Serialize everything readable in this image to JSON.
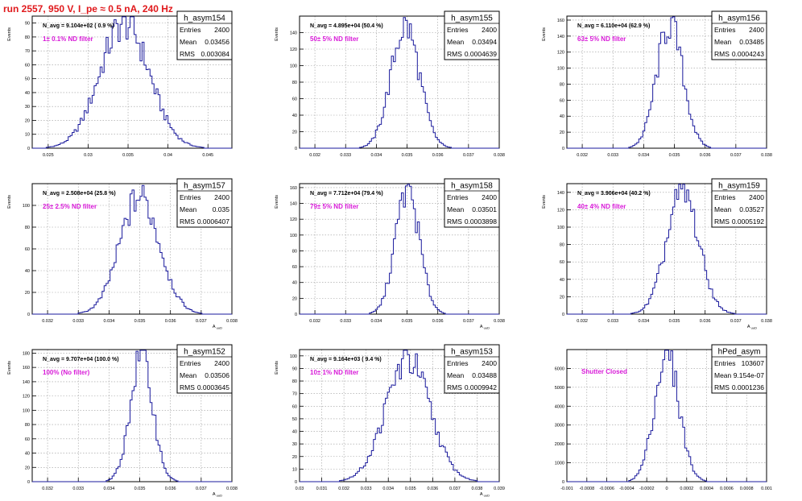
{
  "page": {
    "title": "run 2557,   950 V, I_pe ≈ 0.5 nA, 240 Hz",
    "colors": {
      "histogram": "#1a1a9c",
      "annotation": "#d81ad8",
      "title": "#e0191c",
      "grid": "#9a9a9a"
    }
  },
  "chart_data": [
    {
      "type": "histogram",
      "name": "h_asym154",
      "stats": [
        [
          "Entries",
          "2400"
        ],
        [
          "Mean",
          "0.03456"
        ],
        [
          "RMS",
          "0.003084"
        ]
      ],
      "navg": "N_avg = 9.104e+02 ( 0.9 %)",
      "annotation": "1± 0.1% ND filter",
      "ylabel": "Events",
      "xlabel": "",
      "xlim": [
        0.023,
        0.048
      ],
      "ylim": [
        0,
        95
      ],
      "xticks": [
        0.025,
        0.03,
        0.035,
        0.04,
        0.045
      ],
      "xtick_labels": [
        "0.025",
        "0.03",
        "0.035",
        "0.04",
        "0.045"
      ],
      "yticks": [
        0,
        10,
        20,
        30,
        40,
        50,
        60,
        70,
        80,
        90
      ],
      "ytick_labels": [
        "0",
        "10",
        "20",
        "30",
        "40",
        "50",
        "60",
        "70",
        "80",
        "90"
      ],
      "gauss": {
        "mean": 0.03456,
        "rms": 0.003084,
        "peak": 90
      }
    },
    {
      "type": "histogram",
      "name": "h_asym155",
      "stats": [
        [
          "Entries",
          "2400"
        ],
        [
          "Mean",
          "0.03494"
        ],
        [
          "RMS",
          "0.0004639"
        ]
      ],
      "navg": "N_avg = 4.895e+04 (50.4 %)",
      "annotation": "50± 5% ND filter",
      "ylabel": "Events",
      "xlabel": "",
      "xlim": [
        0.0315,
        0.038
      ],
      "ylim": [
        0,
        160
      ],
      "xticks": [
        0.032,
        0.033,
        0.034,
        0.035,
        0.036,
        0.037,
        0.038
      ],
      "xtick_labels": [
        "0.032",
        "0.033",
        "0.034",
        "0.035",
        "0.036",
        "0.037",
        "0.038"
      ],
      "yticks": [
        0,
        20,
        40,
        60,
        80,
        100,
        120,
        140
      ],
      "ytick_labels": [
        "0",
        "20",
        "40",
        "60",
        "80",
        "100",
        "120",
        "140"
      ],
      "gauss": {
        "mean": 0.03494,
        "rms": 0.0004639,
        "peak": 148
      }
    },
    {
      "type": "histogram",
      "name": "h_asym156",
      "stats": [
        [
          "Entries",
          "2400"
        ],
        [
          "Mean",
          "0.03485"
        ],
        [
          "RMS",
          "0.0004243"
        ]
      ],
      "navg": "N_avg = 6.110e+04 (62.9 %)",
      "annotation": "63± 5% ND filter",
      "ylabel": "Events",
      "xlabel": "",
      "xlim": [
        0.0315,
        0.038
      ],
      "ylim": [
        0,
        165
      ],
      "xticks": [
        0.032,
        0.033,
        0.034,
        0.035,
        0.036,
        0.037,
        0.038
      ],
      "xtick_labels": [
        "0.032",
        "0.033",
        "0.034",
        "0.035",
        "0.036",
        "0.037",
        "0.038"
      ],
      "yticks": [
        0,
        20,
        40,
        60,
        80,
        100,
        120,
        140,
        160
      ],
      "ytick_labels": [
        "0",
        "20",
        "40",
        "60",
        "80",
        "100",
        "120",
        "140",
        "160"
      ],
      "gauss": {
        "mean": 0.03485,
        "rms": 0.0004243,
        "peak": 155
      }
    },
    {
      "type": "histogram",
      "name": "h_asym157",
      "stats": [
        [
          "Entries",
          "2400"
        ],
        [
          "Mean",
          "0.035"
        ],
        [
          "RMS",
          "0.0006407"
        ]
      ],
      "navg": "N_avg = 2.508e+04 (25.8 %)",
      "annotation": "25± 2.5% ND filter",
      "ylabel": "Events",
      "xlabel": "A_uuD",
      "xlim": [
        0.0315,
        0.038
      ],
      "ylim": [
        0,
        120
      ],
      "xticks": [
        0.032,
        0.033,
        0.034,
        0.035,
        0.036,
        0.037,
        0.038
      ],
      "xtick_labels": [
        "0.032",
        "0.033",
        "0.034",
        "0.035",
        "0.036",
        "0.037",
        "0.038"
      ],
      "yticks": [
        0,
        20,
        40,
        60,
        80,
        100
      ],
      "ytick_labels": [
        "0",
        "20",
        "40",
        "60",
        "80",
        "100"
      ],
      "gauss": {
        "mean": 0.035,
        "rms": 0.0006407,
        "peak": 108
      }
    },
    {
      "type": "histogram",
      "name": "h_asym158",
      "stats": [
        [
          "Entries",
          "2400"
        ],
        [
          "Mean",
          "0.03501"
        ],
        [
          "RMS",
          "0.0003898"
        ]
      ],
      "navg": "N_avg = 7.712e+04 (79.4 %)",
      "annotation": "79± 5% ND filter",
      "ylabel": "Events",
      "xlabel": "A_uuD",
      "xlim": [
        0.0315,
        0.038
      ],
      "ylim": [
        0,
        165
      ],
      "xticks": [
        0.032,
        0.033,
        0.034,
        0.035,
        0.036,
        0.037,
        0.038
      ],
      "xtick_labels": [
        "0.032",
        "0.033",
        "0.034",
        "0.035",
        "0.036",
        "0.037",
        "0.038"
      ],
      "yticks": [
        0,
        20,
        40,
        60,
        80,
        100,
        120,
        140,
        160
      ],
      "ytick_labels": [
        "0",
        "20",
        "40",
        "60",
        "80",
        "100",
        "120",
        "140",
        "160"
      ],
      "gauss": {
        "mean": 0.03501,
        "rms": 0.0003898,
        "peak": 158
      }
    },
    {
      "type": "histogram",
      "name": "h_asym159",
      "stats": [
        [
          "Entries",
          "2400"
        ],
        [
          "Mean",
          "0.03527"
        ],
        [
          "RMS",
          "0.0005192"
        ]
      ],
      "navg": "N_avg = 3.906e+04 (40.2 %)",
      "annotation": "40± 4% ND filter",
      "ylabel": "Events",
      "xlabel": "A_uuD",
      "xlim": [
        0.0315,
        0.038
      ],
      "ylim": [
        0,
        150
      ],
      "xticks": [
        0.032,
        0.033,
        0.034,
        0.035,
        0.036,
        0.037,
        0.038
      ],
      "xtick_labels": [
        "0.032",
        "0.033",
        "0.034",
        "0.035",
        "0.036",
        "0.037",
        "0.038"
      ],
      "yticks": [
        0,
        20,
        40,
        60,
        80,
        100,
        120,
        140
      ],
      "ytick_labels": [
        "0",
        "20",
        "40",
        "60",
        "80",
        "100",
        "120",
        "140"
      ],
      "gauss": {
        "mean": 0.03527,
        "rms": 0.0005192,
        "peak": 140
      }
    },
    {
      "type": "histogram",
      "name": "h_asym152",
      "stats": [
        [
          "Entries",
          "2400"
        ],
        [
          "Mean",
          "0.03506"
        ],
        [
          "RMS",
          "0.0003645"
        ]
      ],
      "navg": "N_avg = 9.707e+04 (100.0 %)",
      "annotation": "100% (No filter)",
      "ylabel": "Events",
      "xlabel": "A_uuD",
      "xlim": [
        0.0315,
        0.038
      ],
      "ylim": [
        0,
        185
      ],
      "xticks": [
        0.032,
        0.033,
        0.034,
        0.035,
        0.036,
        0.037,
        0.038
      ],
      "xtick_labels": [
        "0.032",
        "0.033",
        "0.034",
        "0.035",
        "0.036",
        "0.037",
        "0.038"
      ],
      "yticks": [
        0,
        20,
        40,
        60,
        80,
        100,
        120,
        140,
        160,
        180
      ],
      "ytick_labels": [
        "0",
        "20",
        "40",
        "60",
        "80",
        "100",
        "120",
        "140",
        "160",
        "180"
      ],
      "gauss": {
        "mean": 0.03506,
        "rms": 0.0003645,
        "peak": 176
      }
    },
    {
      "type": "histogram",
      "name": "h_asym153",
      "stats": [
        [
          "Entries",
          "2400"
        ],
        [
          "Mean",
          "0.03488"
        ],
        [
          "RMS",
          "0.0009942"
        ]
      ],
      "navg": "N_avg = 9.164e+03 ( 9.4 %)",
      "annotation": "10± 1% ND filter",
      "ylabel": "Events",
      "xlabel": "A_uuD",
      "xlim": [
        0.03,
        0.039
      ],
      "ylim": [
        0,
        105
      ],
      "xticks": [
        0.03,
        0.031,
        0.032,
        0.033,
        0.034,
        0.035,
        0.036,
        0.037,
        0.038,
        0.039
      ],
      "xtick_labels": [
        "0.03",
        "0.031",
        "0.032",
        "0.033",
        "0.034",
        "0.035",
        "0.036",
        "0.037",
        "0.038",
        "0.039"
      ],
      "yticks": [
        0,
        10,
        20,
        30,
        40,
        50,
        60,
        70,
        80,
        90,
        100
      ],
      "ytick_labels": [
        "0",
        "10",
        "20",
        "30",
        "40",
        "50",
        "60",
        "70",
        "80",
        "90",
        "100"
      ],
      "gauss": {
        "mean": 0.03488,
        "rms": 0.0009942,
        "peak": 97
      }
    },
    {
      "type": "histogram",
      "name": "hPed_asym",
      "stats": [
        [
          "Entries",
          "103607"
        ],
        [
          "Mean",
          "9.154e-07"
        ],
        [
          "RMS",
          "0.0001236"
        ]
      ],
      "navg": "",
      "annotation": "Shutter Closed",
      "ylabel": "",
      "xlabel": "",
      "xlim": [
        -0.001,
        0.001
      ],
      "ylim": [
        0,
        7000
      ],
      "xticks": [
        -0.001,
        -0.0008,
        -0.0006,
        -0.0004,
        -0.0002,
        0,
        0.0002,
        0.0004,
        0.0006,
        0.0008,
        0.001
      ],
      "xtick_labels": [
        "-0.001",
        "-0.0008",
        "-0.0006",
        "-0.0004",
        "-0.0002",
        "0",
        "0.0002",
        "0.0004",
        "0.0006",
        "0.0008",
        "0.001"
      ],
      "yticks": [
        0,
        1000,
        2000,
        3000,
        4000,
        5000,
        6000
      ],
      "ytick_labels": [
        "0",
        "1000",
        "2000",
        "3000",
        "4000",
        "5000",
        "6000"
      ],
      "gauss": {
        "mean": 9.154e-07,
        "rms": 0.0001236,
        "peak": 6700
      }
    }
  ]
}
